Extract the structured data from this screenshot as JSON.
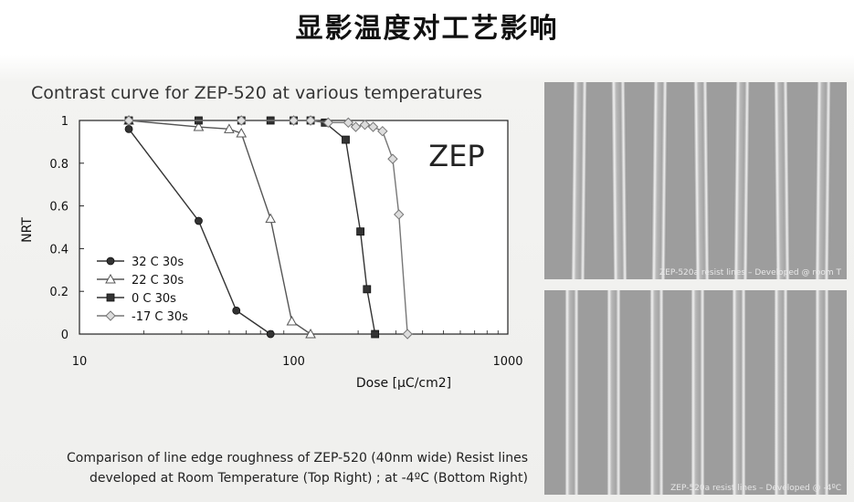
{
  "slide": {
    "title": "显影温度对工艺影响"
  },
  "chart_data": {
    "type": "line",
    "title": "Contrast curve for ZEP-520 at various temperatures",
    "xlabel": "Dose [µC/cm2]",
    "ylabel": "NRT",
    "xscale": "log",
    "xlim": [
      10,
      1000
    ],
    "ylim": [
      0,
      1
    ],
    "xticks": [
      "10",
      "100",
      "1000"
    ],
    "yticks": [
      "0",
      "0.2",
      "0.4",
      "0.6",
      "0.8",
      "1"
    ],
    "annotation": "ZEP",
    "legend_position": "bottom-left",
    "series": [
      {
        "name": "32 C 30s",
        "marker": "circle",
        "color": "#333333",
        "x": [
          17,
          36,
          54,
          78
        ],
        "y": [
          0.96,
          0.53,
          0.11,
          0.0
        ]
      },
      {
        "name": "22 C 30s",
        "marker": "triangle",
        "color": "#555555",
        "x": [
          17,
          36,
          50,
          57,
          78,
          98,
          120
        ],
        "y": [
          1.0,
          0.97,
          0.96,
          0.94,
          0.54,
          0.06,
          0.0
        ]
      },
      {
        "name": "0 C 30s",
        "marker": "square",
        "color": "#333333",
        "x": [
          17,
          36,
          57,
          78,
          100,
          120,
          140,
          175,
          205,
          220,
          240
        ],
        "y": [
          1.0,
          1.0,
          1.0,
          1.0,
          1.0,
          1.0,
          0.99,
          0.91,
          0.48,
          0.21,
          0.0
        ]
      },
      {
        "name": "-17 C 30s",
        "marker": "diamond",
        "color": "#777777",
        "x": [
          17,
          57,
          100,
          120,
          145,
          180,
          195,
          215,
          235,
          260,
          290,
          310,
          340
        ],
        "y": [
          1.0,
          1.0,
          1.0,
          1.0,
          0.99,
          0.99,
          0.97,
          0.98,
          0.97,
          0.95,
          0.82,
          0.56,
          0.0
        ]
      }
    ]
  },
  "caption": {
    "line1": "Comparison of line edge roughness of ZEP-520 (40nm wide) Resist lines",
    "line2": "developed at Room Temperature (Top Right) ; at -4ºC (Bottom Right)"
  },
  "images": {
    "top_label": "ZEP-520a resist lines – Developed @ room T",
    "bottom_label": "ZEP-520a resist lines – Developed @ -4ºC"
  }
}
